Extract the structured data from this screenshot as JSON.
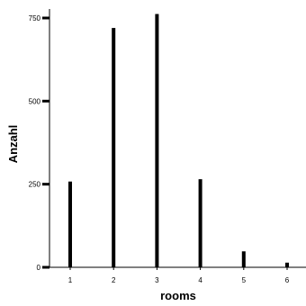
{
  "chart_data": {
    "type": "bar",
    "categories": [
      "1",
      "2",
      "3",
      "4",
      "5",
      "6"
    ],
    "values": [
      258,
      720,
      762,
      265,
      48,
      14
    ],
    "xlabel": "rooms",
    "ylabel": "Anzahl",
    "ylim": [
      0,
      770
    ],
    "yticks": [
      0,
      250,
      500,
      750
    ],
    "grid": false,
    "color": "#000000"
  }
}
